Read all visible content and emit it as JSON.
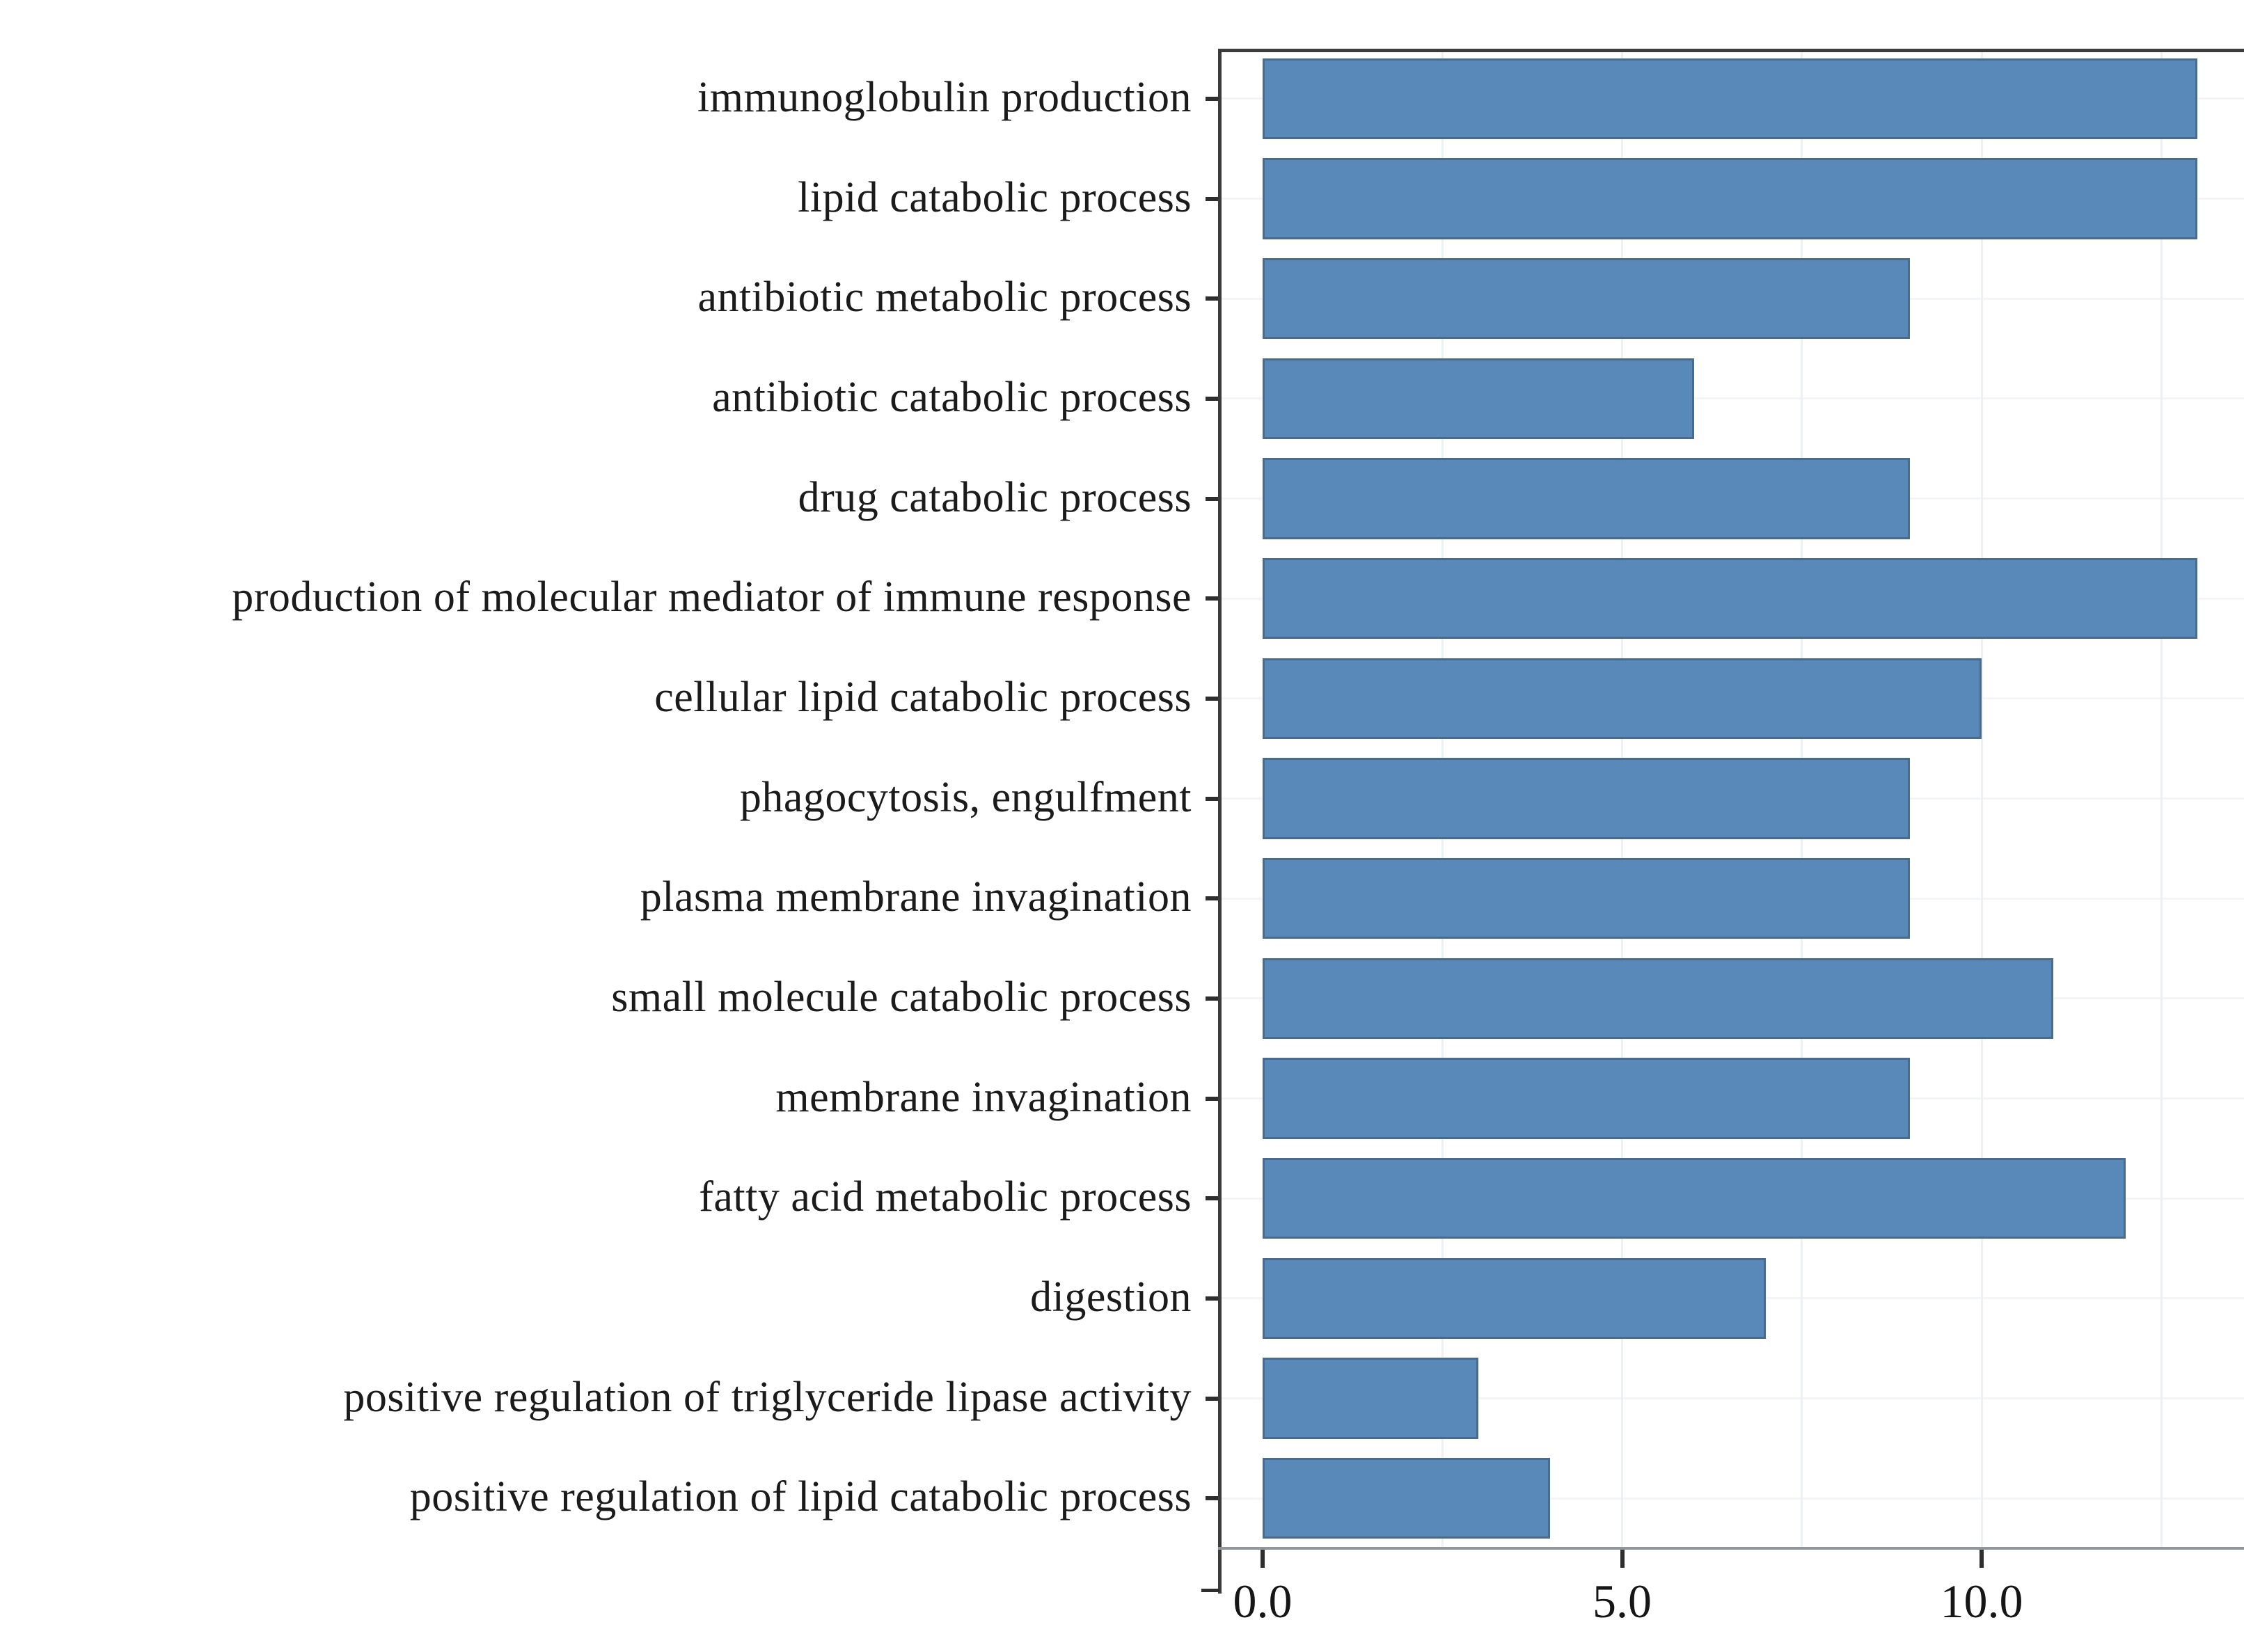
{
  "chart_data": {
    "type": "bar",
    "orientation": "horizontal",
    "categories": [
      "immunoglobulin production",
      "lipid catabolic process",
      "antibiotic metabolic process",
      "antibiotic catabolic process",
      "drug catabolic process",
      "production of molecular mediator of immune response",
      "cellular lipid catabolic process",
      "phagocytosis, engulfment",
      "plasma membrane invagination",
      "small molecule catabolic process",
      "membrane invagination",
      "fatty acid metabolic process",
      "digestion",
      "positive regulation of triglyceride lipase activity",
      "positive regulation of lipid catabolic process"
    ],
    "values": [
      13,
      13,
      9,
      6,
      9,
      13,
      10,
      9,
      9,
      11,
      9,
      12,
      7,
      3,
      4
    ],
    "xlabel": "",
    "ylabel": "",
    "x_axis": {
      "min": 0,
      "max_visible": 13.65,
      "ticks": [
        0,
        5,
        10
      ],
      "tick_labels": [
        "0.0",
        "5.0",
        "10.0"
      ],
      "gridline_values": [
        2.5,
        5,
        7.5,
        10,
        12.5
      ]
    },
    "grid": "faint",
    "legend": "none",
    "colors": {
      "bar_fill": "#5889B8",
      "bar_edge": "#4D6A84",
      "frame": "#3B3B3B",
      "x_axis_line": "#8F979B",
      "tick": "#2E2E2E",
      "text": "#1B1B1B",
      "gridline": "#EEF1F3",
      "background": "#FFFFFF"
    }
  }
}
